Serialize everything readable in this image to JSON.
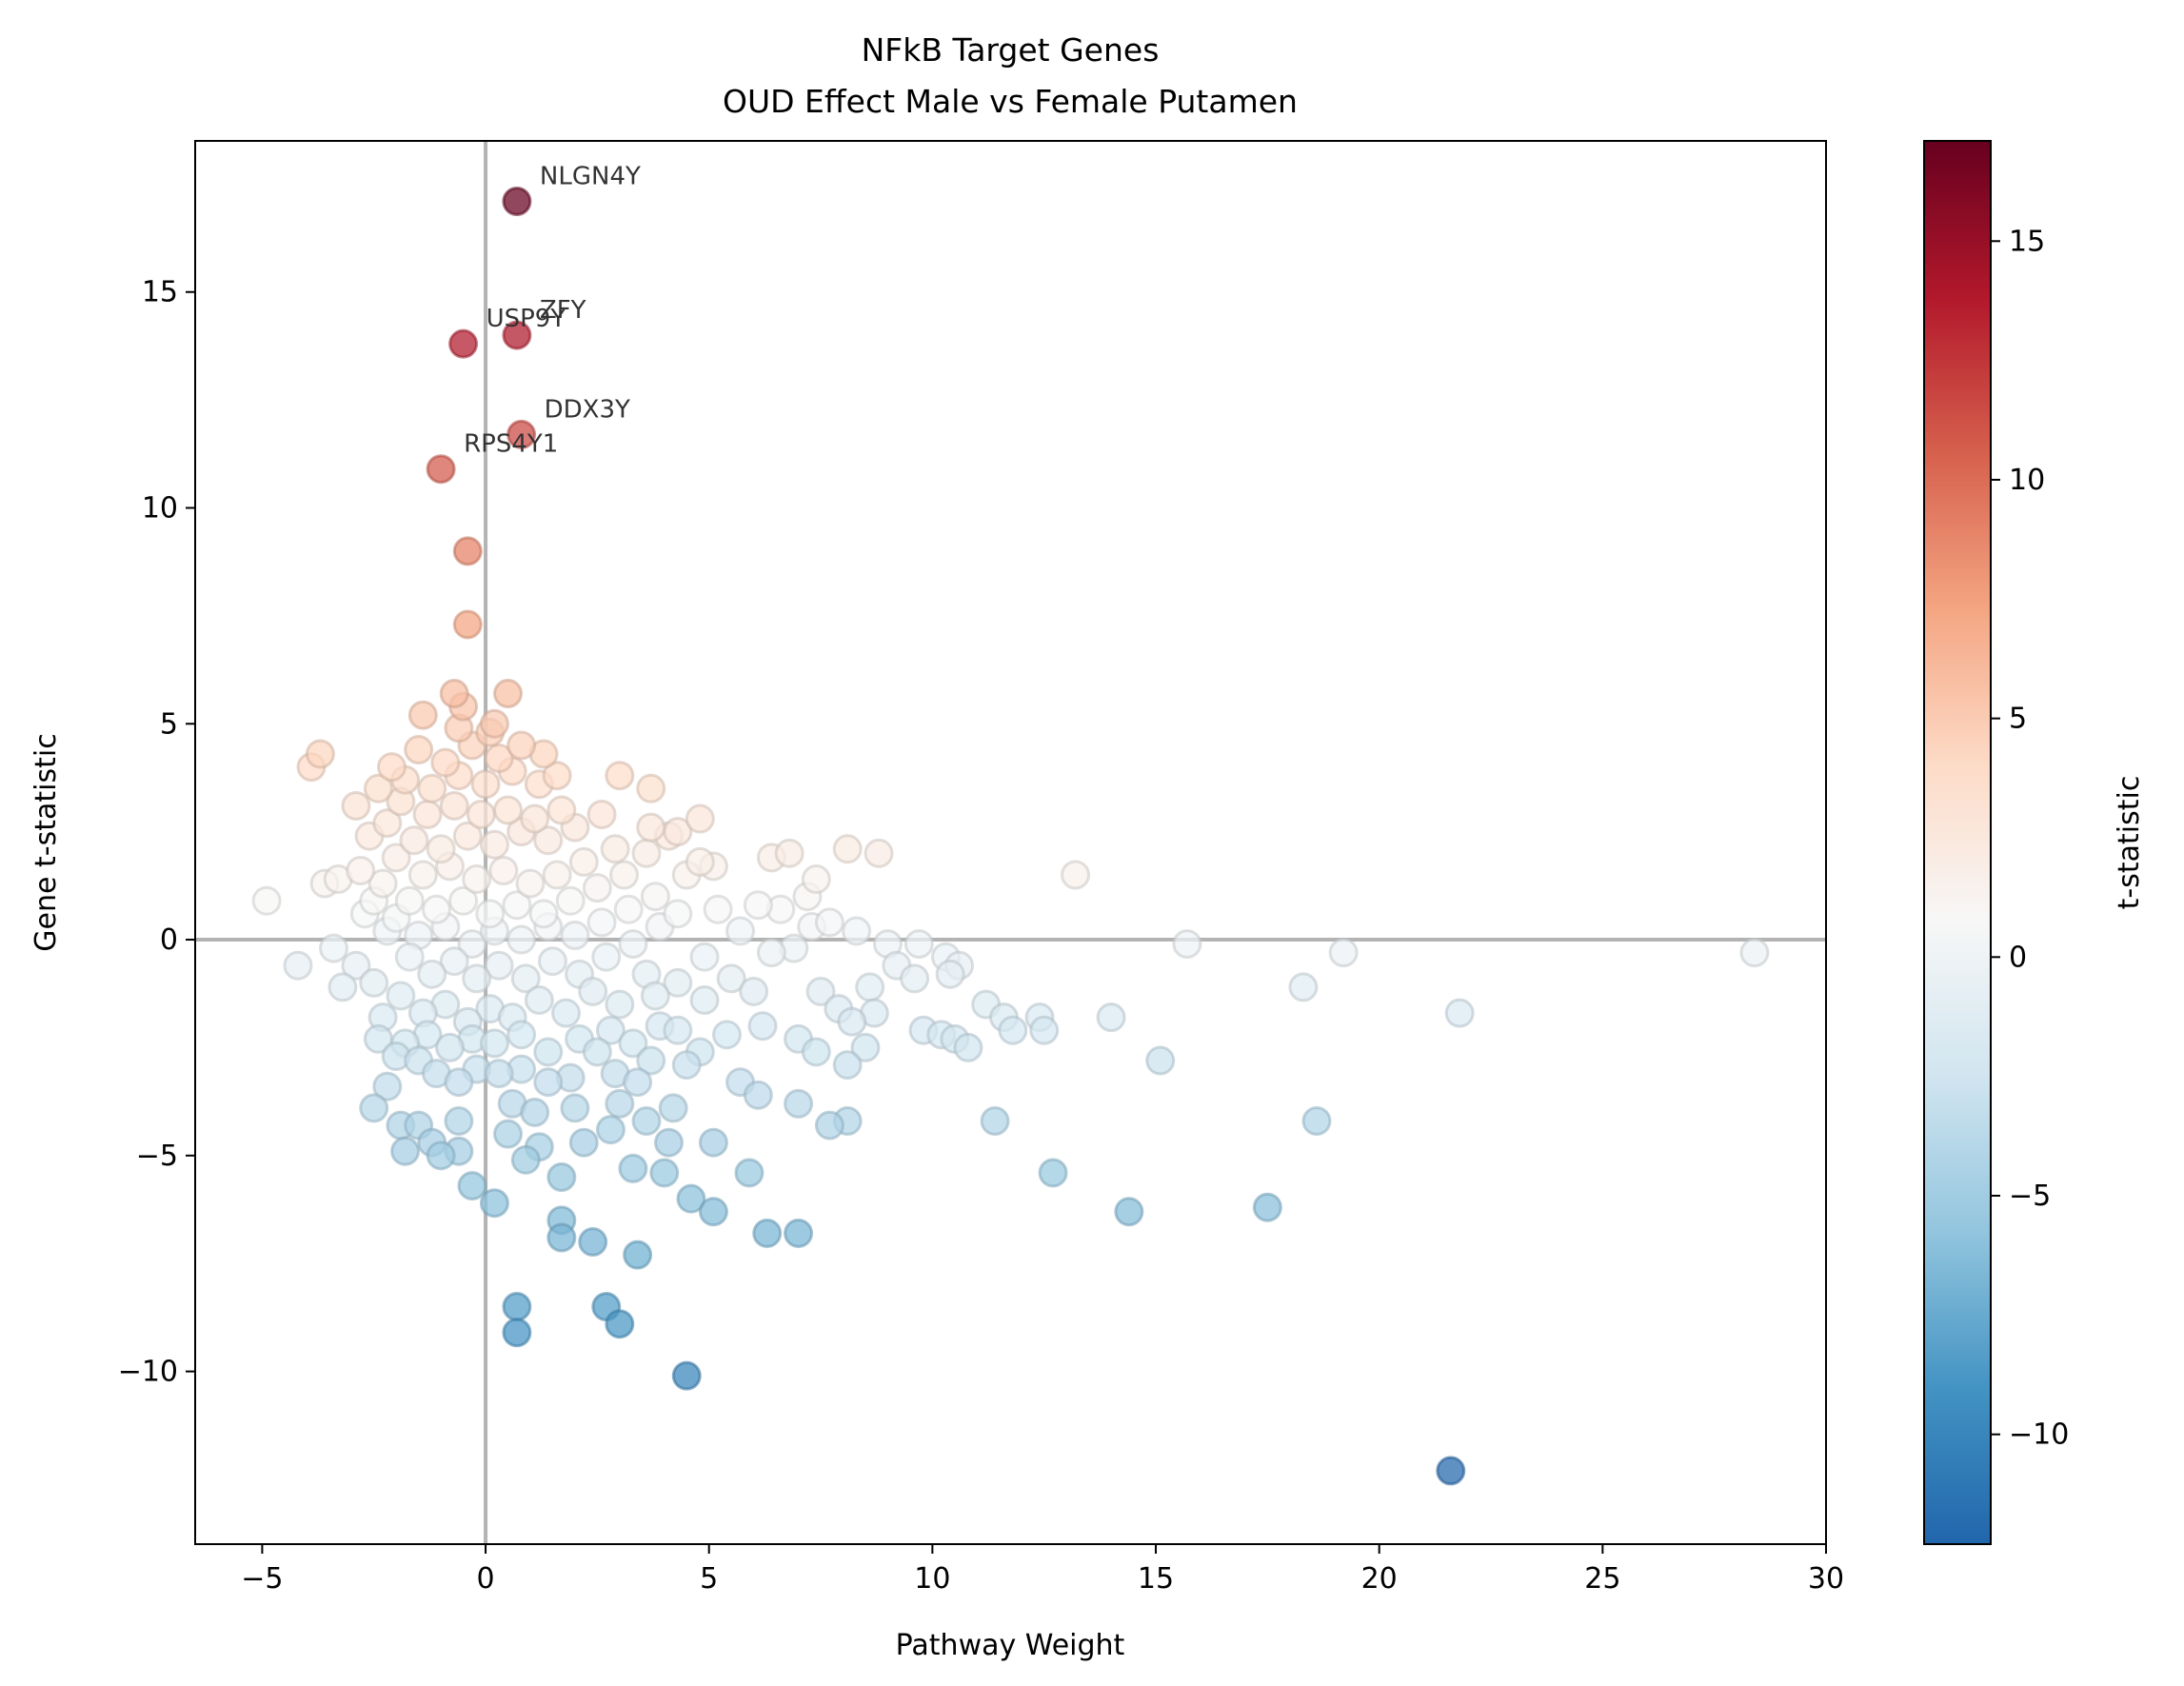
{
  "chart_data": {
    "type": "scatter",
    "title": "NFkB Target Genes",
    "subtitle": "OUD Effect Male vs Female Putamen",
    "xlabel": "Pathway Weight",
    "ylabel": "Gene t-statistic",
    "xlim": [
      -6.5,
      30
    ],
    "ylim": [
      -14,
      18.5
    ],
    "xticks": [
      -5,
      0,
      5,
      10,
      15,
      20,
      25,
      30
    ],
    "xtick_labels": [
      "−5",
      "0",
      "5",
      "10",
      "15",
      "20",
      "25",
      "30"
    ],
    "yticks": [
      -10,
      -5,
      0,
      5,
      10,
      15
    ],
    "ytick_labels": [
      "−10",
      "−5",
      "0",
      "5",
      "10",
      "15"
    ],
    "reference_lines": {
      "x": 0,
      "y": 0
    },
    "colorbar": {
      "label": "t-statistic",
      "range": [
        -12.3,
        17.1
      ],
      "ticks": [
        -10,
        -5,
        0,
        5,
        10,
        15
      ],
      "tick_labels": [
        "−10",
        "−5",
        "0",
        "5",
        "10",
        "15"
      ],
      "colormap_stops": [
        "#2166ac",
        "#4393c3",
        "#92c5de",
        "#d1e5f0",
        "#f7f7f7",
        "#fddbc7",
        "#f4a582",
        "#d6604d",
        "#b2182b",
        "#67001f"
      ]
    },
    "grid": false,
    "legend": "none",
    "annotations": [
      {
        "label": "NLGN4Y",
        "x": 0.7,
        "y": 17.1
      },
      {
        "label": "ZFY",
        "x": 0.7,
        "y": 14.0
      },
      {
        "label": "USP9Y",
        "x": -0.5,
        "y": 13.8
      },
      {
        "label": "DDX3Y",
        "x": 0.8,
        "y": 11.7
      },
      {
        "label": "RPS4Y1",
        "x": -1.0,
        "y": 10.9
      }
    ],
    "points": [
      {
        "x": 0.7,
        "y": 17.1
      },
      {
        "x": 0.7,
        "y": 14.0
      },
      {
        "x": -0.5,
        "y": 13.8
      },
      {
        "x": 0.8,
        "y": 11.7
      },
      {
        "x": -1.0,
        "y": 10.9
      },
      {
        "x": -0.4,
        "y": 9.0
      },
      {
        "x": -0.4,
        "y": 7.3
      },
      {
        "x": 21.6,
        "y": -12.3
      },
      {
        "x": 4.5,
        "y": -10.1
      },
      {
        "x": 0.7,
        "y": -9.1
      },
      {
        "x": 0.7,
        "y": -8.5
      },
      {
        "x": 2.7,
        "y": -8.5
      },
      {
        "x": 3.0,
        "y": -8.9
      },
      {
        "x": 3.4,
        "y": -7.3
      },
      {
        "x": 2.4,
        "y": -7.0
      },
      {
        "x": 1.7,
        "y": -6.9
      },
      {
        "x": 1.7,
        "y": -6.5
      },
      {
        "x": 6.3,
        "y": -6.8
      },
      {
        "x": 7.0,
        "y": -6.8
      },
      {
        "x": 5.1,
        "y": -6.3
      },
      {
        "x": 4.6,
        "y": -6.0
      },
      {
        "x": 14.4,
        "y": -6.3
      },
      {
        "x": 17.5,
        "y": -6.2
      },
      {
        "x": 12.7,
        "y": -5.4
      },
      {
        "x": 0.2,
        "y": -6.1
      },
      {
        "x": -0.3,
        "y": -5.7
      },
      {
        "x": 5.9,
        "y": -5.4
      },
      {
        "x": 1.7,
        "y": -5.5
      },
      {
        "x": 3.3,
        "y": -5.3
      },
      {
        "x": 4.0,
        "y": -5.4
      },
      {
        "x": 5.1,
        "y": -4.7
      },
      {
        "x": 8.1,
        "y": -4.2
      },
      {
        "x": 7.7,
        "y": -4.3
      },
      {
        "x": 11.4,
        "y": -4.2
      },
      {
        "x": 18.6,
        "y": -4.2
      },
      {
        "x": 7.0,
        "y": -3.8
      },
      {
        "x": 6.1,
        "y": -3.6
      },
      {
        "x": 5.7,
        "y": -3.3
      },
      {
        "x": -2.5,
        "y": -3.9
      },
      {
        "x": -2.2,
        "y": -3.4
      },
      {
        "x": -1.9,
        "y": -4.3
      },
      {
        "x": -1.8,
        "y": -4.9
      },
      {
        "x": -1.5,
        "y": -4.3
      },
      {
        "x": -1.2,
        "y": -4.7
      },
      {
        "x": -1.0,
        "y": -5.0
      },
      {
        "x": -0.6,
        "y": -4.9
      },
      {
        "x": -0.6,
        "y": -4.2
      },
      {
        "x": 0.5,
        "y": -4.5
      },
      {
        "x": 0.9,
        "y": -5.1
      },
      {
        "x": 1.2,
        "y": -4.8
      },
      {
        "x": 2.2,
        "y": -4.7
      },
      {
        "x": 2.8,
        "y": -4.4
      },
      {
        "x": 3.6,
        "y": -4.2
      },
      {
        "x": 4.1,
        "y": -4.7
      },
      {
        "x": 4.2,
        "y": -3.9
      },
      {
        "x": 3.0,
        "y": -3.8
      },
      {
        "x": 2.0,
        "y": -3.9
      },
      {
        "x": 1.1,
        "y": -4.0
      },
      {
        "x": 0.6,
        "y": -3.8
      },
      {
        "x": 15.1,
        "y": -2.8
      },
      {
        "x": 14.0,
        "y": -1.8
      },
      {
        "x": 12.5,
        "y": -2.1
      },
      {
        "x": 12.4,
        "y": -1.8
      },
      {
        "x": 11.6,
        "y": -1.8
      },
      {
        "x": 11.2,
        "y": -1.5
      },
      {
        "x": 11.8,
        "y": -2.1
      },
      {
        "x": 10.2,
        "y": -2.2
      },
      {
        "x": 9.8,
        "y": -2.1
      },
      {
        "x": 10.5,
        "y": -2.3
      },
      {
        "x": 10.8,
        "y": -2.5
      },
      {
        "x": 8.5,
        "y": -2.5
      },
      {
        "x": 8.1,
        "y": -2.9
      },
      {
        "x": 8.7,
        "y": -1.7
      },
      {
        "x": 8.2,
        "y": -1.9
      },
      {
        "x": 7.9,
        "y": -1.6
      },
      {
        "x": 7.4,
        "y": -2.6
      },
      {
        "x": 7.0,
        "y": -2.3
      },
      {
        "x": 6.2,
        "y": -2.0
      },
      {
        "x": 7.5,
        "y": -1.2
      },
      {
        "x": 8.6,
        "y": -1.1
      },
      {
        "x": 9.6,
        "y": -0.9
      },
      {
        "x": 9.2,
        "y": -0.6
      },
      {
        "x": 10.6,
        "y": -0.6
      },
      {
        "x": 10.3,
        "y": -0.4
      },
      {
        "x": 10.4,
        "y": -0.8
      },
      {
        "x": 18.3,
        "y": -1.1
      },
      {
        "x": 21.8,
        "y": -1.7
      },
      {
        "x": 19.2,
        "y": -0.3
      },
      {
        "x": 15.7,
        "y": -0.1
      },
      {
        "x": 28.4,
        "y": -0.3
      },
      {
        "x": 13.2,
        "y": 1.5
      },
      {
        "x": 9.0,
        "y": -0.1
      },
      {
        "x": 9.7,
        "y": -0.1
      },
      {
        "x": 7.7,
        "y": 0.4
      },
      {
        "x": 8.3,
        "y": 0.2
      },
      {
        "x": 7.2,
        "y": 1.0
      },
      {
        "x": 7.4,
        "y": 1.4
      },
      {
        "x": 8.1,
        "y": 2.1
      },
      {
        "x": 8.8,
        "y": 2.0
      },
      {
        "x": 6.8,
        "y": 2.0
      },
      {
        "x": 6.4,
        "y": 1.9
      },
      {
        "x": 6.1,
        "y": 0.8
      },
      {
        "x": 6.6,
        "y": 0.7
      },
      {
        "x": 7.3,
        "y": 0.3
      },
      {
        "x": 6.9,
        "y": -0.2
      },
      {
        "x": 6.4,
        "y": -0.3
      },
      {
        "x": 5.7,
        "y": 0.2
      },
      {
        "x": 5.2,
        "y": 0.7
      },
      {
        "x": 5.1,
        "y": 1.7
      },
      {
        "x": 4.8,
        "y": 1.8
      },
      {
        "x": 4.5,
        "y": 1.5
      },
      {
        "x": 4.9,
        "y": -0.4
      },
      {
        "x": 5.5,
        "y": -0.9
      },
      {
        "x": 6.0,
        "y": -1.2
      },
      {
        "x": 4.9,
        "y": -1.4
      },
      {
        "x": 5.4,
        "y": -2.2
      },
      {
        "x": 4.8,
        "y": -2.6
      },
      {
        "x": 4.5,
        "y": -2.9
      },
      {
        "x": 4.3,
        "y": -2.1
      },
      {
        "x": 3.8,
        "y": -1.3
      },
      {
        "x": 3.7,
        "y": -2.8
      },
      {
        "x": 3.4,
        "y": -3.3
      },
      {
        "x": 2.9,
        "y": -3.1
      },
      {
        "x": 2.5,
        "y": -2.6
      },
      {
        "x": 1.9,
        "y": -3.2
      },
      {
        "x": 1.4,
        "y": -3.3
      },
      {
        "x": 0.8,
        "y": -3.0
      },
      {
        "x": 0.3,
        "y": -3.1
      },
      {
        "x": -0.2,
        "y": -3.0
      },
      {
        "x": -0.6,
        "y": -3.3
      },
      {
        "x": -1.1,
        "y": -3.1
      },
      {
        "x": -1.5,
        "y": -2.8
      },
      {
        "x": -2.0,
        "y": -2.7
      },
      {
        "x": -2.4,
        "y": -2.3
      },
      {
        "x": -2.3,
        "y": -1.8
      },
      {
        "x": -1.8,
        "y": -2.4
      },
      {
        "x": -1.3,
        "y": -2.2
      },
      {
        "x": -0.8,
        "y": -2.5
      },
      {
        "x": -0.3,
        "y": -2.3
      },
      {
        "x": 0.2,
        "y": -2.4
      },
      {
        "x": 0.8,
        "y": -2.2
      },
      {
        "x": 1.4,
        "y": -2.6
      },
      {
        "x": 2.1,
        "y": -2.3
      },
      {
        "x": 2.8,
        "y": -2.1
      },
      {
        "x": 3.3,
        "y": -2.4
      },
      {
        "x": 3.9,
        "y": -2.0
      },
      {
        "x": 4.3,
        "y": -1.0
      },
      {
        "x": 3.6,
        "y": -0.8
      },
      {
        "x": 3.0,
        "y": -1.5
      },
      {
        "x": 2.4,
        "y": -1.2
      },
      {
        "x": 1.8,
        "y": -1.7
      },
      {
        "x": 1.2,
        "y": -1.4
      },
      {
        "x": 0.6,
        "y": -1.8
      },
      {
        "x": 0.1,
        "y": -1.6
      },
      {
        "x": -0.4,
        "y": -1.9
      },
      {
        "x": -0.9,
        "y": -1.5
      },
      {
        "x": -1.4,
        "y": -1.7
      },
      {
        "x": -1.9,
        "y": -1.3
      },
      {
        "x": -2.5,
        "y": -1.0
      },
      {
        "x": -2.9,
        "y": -0.6
      },
      {
        "x": -3.2,
        "y": -1.1
      },
      {
        "x": -3.4,
        "y": -0.2
      },
      {
        "x": -4.2,
        "y": -0.6
      },
      {
        "x": -4.9,
        "y": 0.9
      },
      {
        "x": -3.6,
        "y": 1.3
      },
      {
        "x": -3.3,
        "y": 1.4
      },
      {
        "x": -2.7,
        "y": 0.6
      },
      {
        "x": -2.2,
        "y": 0.2
      },
      {
        "x": -1.7,
        "y": -0.4
      },
      {
        "x": -1.2,
        "y": -0.8
      },
      {
        "x": -0.7,
        "y": -0.5
      },
      {
        "x": -0.2,
        "y": -0.9
      },
      {
        "x": 0.3,
        "y": -0.6
      },
      {
        "x": 0.9,
        "y": -0.9
      },
      {
        "x": 1.5,
        "y": -0.5
      },
      {
        "x": 2.1,
        "y": -0.8
      },
      {
        "x": 2.7,
        "y": -0.4
      },
      {
        "x": 3.3,
        "y": -0.1
      },
      {
        "x": 3.9,
        "y": 0.3
      },
      {
        "x": 4.3,
        "y": 0.6
      },
      {
        "x": 3.8,
        "y": 1.0
      },
      {
        "x": 3.2,
        "y": 0.7
      },
      {
        "x": 2.6,
        "y": 0.4
      },
      {
        "x": 2.0,
        "y": 0.1
      },
      {
        "x": 1.4,
        "y": 0.3
      },
      {
        "x": 0.8,
        "y": 0.0
      },
      {
        "x": 0.2,
        "y": 0.2
      },
      {
        "x": -0.3,
        "y": -0.1
      },
      {
        "x": -0.9,
        "y": 0.3
      },
      {
        "x": -1.5,
        "y": 0.1
      },
      {
        "x": -2.0,
        "y": 0.5
      },
      {
        "x": -2.5,
        "y": 0.9
      },
      {
        "x": -2.8,
        "y": 1.6
      },
      {
        "x": -2.3,
        "y": 1.3
      },
      {
        "x": -1.7,
        "y": 0.9
      },
      {
        "x": -1.1,
        "y": 0.7
      },
      {
        "x": -0.5,
        "y": 0.9
      },
      {
        "x": 0.1,
        "y": 0.6
      },
      {
        "x": 0.7,
        "y": 0.8
      },
      {
        "x": 1.3,
        "y": 0.6
      },
      {
        "x": 1.9,
        "y": 0.9
      },
      {
        "x": 2.5,
        "y": 1.2
      },
      {
        "x": 3.1,
        "y": 1.5
      },
      {
        "x": 3.6,
        "y": 2.0
      },
      {
        "x": 4.1,
        "y": 2.4
      },
      {
        "x": 3.7,
        "y": 2.6
      },
      {
        "x": 2.9,
        "y": 2.1
      },
      {
        "x": 2.2,
        "y": 1.8
      },
      {
        "x": 1.6,
        "y": 1.5
      },
      {
        "x": 1.0,
        "y": 1.3
      },
      {
        "x": 0.4,
        "y": 1.6
      },
      {
        "x": -0.2,
        "y": 1.4
      },
      {
        "x": -0.8,
        "y": 1.7
      },
      {
        "x": -1.4,
        "y": 1.5
      },
      {
        "x": -2.0,
        "y": 1.9
      },
      {
        "x": -2.6,
        "y": 2.4
      },
      {
        "x": -2.2,
        "y": 2.7
      },
      {
        "x": -1.6,
        "y": 2.3
      },
      {
        "x": -1.0,
        "y": 2.1
      },
      {
        "x": -0.4,
        "y": 2.4
      },
      {
        "x": 0.2,
        "y": 2.2
      },
      {
        "x": 0.8,
        "y": 2.5
      },
      {
        "x": 1.4,
        "y": 2.3
      },
      {
        "x": 2.0,
        "y": 2.6
      },
      {
        "x": 2.6,
        "y": 2.9
      },
      {
        "x": 1.7,
        "y": 3.0
      },
      {
        "x": 1.1,
        "y": 2.8
      },
      {
        "x": 0.5,
        "y": 3.0
      },
      {
        "x": -0.1,
        "y": 2.9
      },
      {
        "x": -0.7,
        "y": 3.1
      },
      {
        "x": -1.3,
        "y": 2.9
      },
      {
        "x": -1.9,
        "y": 3.2
      },
      {
        "x": -2.9,
        "y": 3.1
      },
      {
        "x": -2.4,
        "y": 3.5
      },
      {
        "x": -1.8,
        "y": 3.7
      },
      {
        "x": -1.2,
        "y": 3.5
      },
      {
        "x": -0.6,
        "y": 3.8
      },
      {
        "x": 0.0,
        "y": 3.6
      },
      {
        "x": 0.6,
        "y": 3.9
      },
      {
        "x": 1.2,
        "y": 3.6
      },
      {
        "x": 1.6,
        "y": 3.8
      },
      {
        "x": 3.7,
        "y": 3.5
      },
      {
        "x": 3.0,
        "y": 3.8
      },
      {
        "x": 4.8,
        "y": 2.8
      },
      {
        "x": 4.3,
        "y": 2.5
      },
      {
        "x": -3.9,
        "y": 4.0
      },
      {
        "x": -3.7,
        "y": 4.3
      },
      {
        "x": -2.1,
        "y": 4.0
      },
      {
        "x": -1.5,
        "y": 4.4
      },
      {
        "x": -0.9,
        "y": 4.1
      },
      {
        "x": -0.3,
        "y": 4.5
      },
      {
        "x": 0.3,
        "y": 4.2
      },
      {
        "x": 0.8,
        "y": 4.5
      },
      {
        "x": 1.3,
        "y": 4.3
      },
      {
        "x": -1.4,
        "y": 5.2
      },
      {
        "x": -0.7,
        "y": 5.7
      },
      {
        "x": -0.5,
        "y": 5.4
      },
      {
        "x": 0.2,
        "y": 5.0
      },
      {
        "x": 0.5,
        "y": 5.7
      },
      {
        "x": 0.1,
        "y": 4.8
      },
      {
        "x": -0.6,
        "y": 4.9
      }
    ]
  }
}
